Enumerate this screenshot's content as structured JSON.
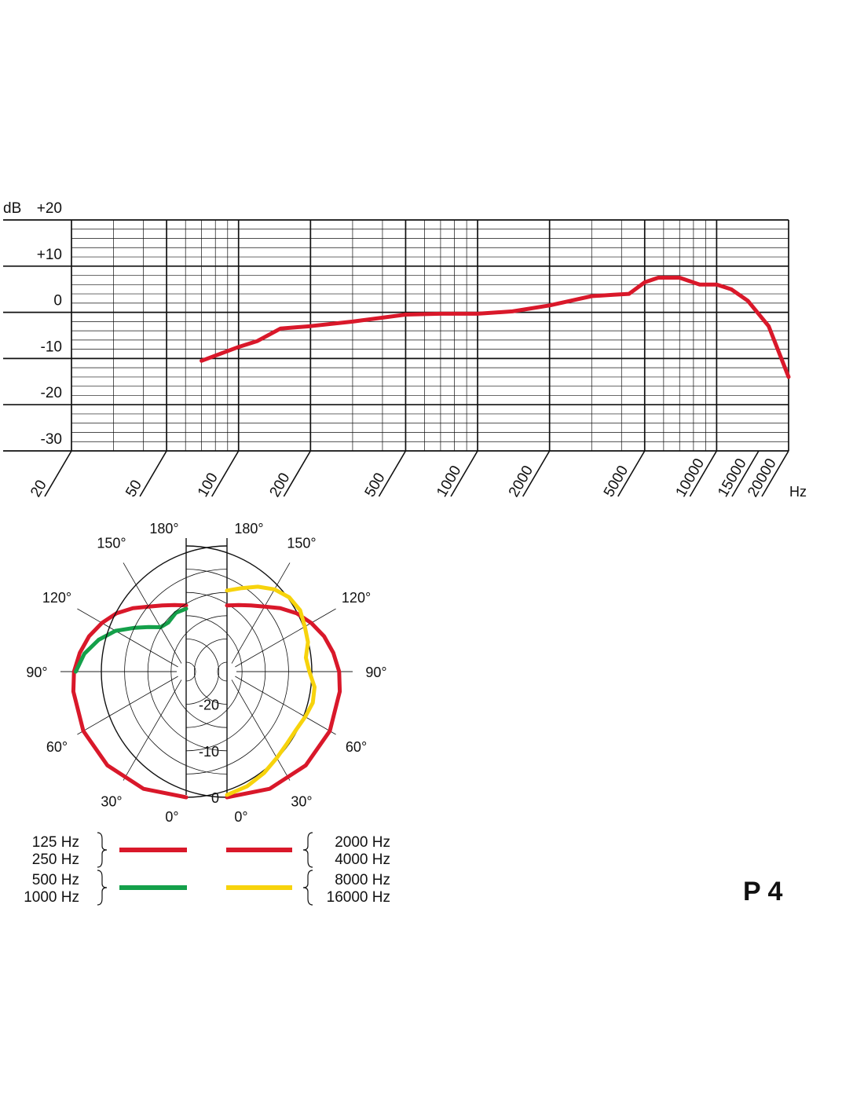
{
  "model_label": "P 4",
  "colors": {
    "red": "#d9182a",
    "green": "#14a04a",
    "yellow": "#f7d30c",
    "grid": "#111111"
  },
  "chart_data": [
    {
      "type": "line",
      "subtype": "frequency-response",
      "title": "",
      "x_scale": "log",
      "xlabel": "Hz",
      "ylabel": "dB",
      "xlim": [
        20,
        20000
      ],
      "ylim": [
        -30,
        20
      ],
      "x_ticks": [
        "20",
        "50",
        "100",
        "200",
        "500",
        "1000",
        "2000",
        "5000",
        "10000",
        "15000",
        "20000"
      ],
      "x_tick_values": [
        20,
        50,
        100,
        200,
        500,
        1000,
        2000,
        5000,
        10000,
        15000,
        20000
      ],
      "y_ticks": [
        "+20",
        "+10",
        "0",
        "-10",
        "-20",
        "-30"
      ],
      "y_tick_values": [
        20,
        10,
        0,
        -10,
        -20,
        -30
      ],
      "grid": true,
      "series": [
        {
          "color": "#d9182a",
          "x": [
            70,
            100,
            120,
            150,
            200,
            300,
            500,
            700,
            1000,
            1400,
            2000,
            3000,
            3700,
            4300,
            5000,
            5700,
            7000,
            8500,
            10000,
            11500,
            13500,
            16500,
            20000
          ],
          "y": [
            -10.5,
            -7.5,
            -6.2,
            -3.5,
            -3,
            -2,
            -0.5,
            -0.3,
            -0.3,
            0.2,
            1.5,
            3.5,
            3.8,
            4,
            6.5,
            7.5,
            7.5,
            6,
            6,
            5,
            2.5,
            -3,
            -14
          ]
        }
      ]
    },
    {
      "type": "polar",
      "subtype": "polar-pattern",
      "title": "",
      "angle_labels": [
        "0°",
        "30°",
        "60°",
        "90°",
        "120°",
        "150°",
        "180°"
      ],
      "angle_values": [
        0,
        30,
        60,
        90,
        120,
        150,
        180
      ],
      "radial_labels": [
        "0",
        "-10",
        "-20"
      ],
      "radial_values": [
        0,
        -10,
        -20
      ],
      "rlim": [
        -25,
        0
      ],
      "grid": true,
      "series": [
        {
          "side": "left",
          "color": "#d9182a",
          "legend": [
            "125 Hz",
            "250 Hz"
          ],
          "angles": [
            0,
            20,
            40,
            60,
            80,
            90,
            100,
            110,
            120,
            130,
            140,
            150,
            160,
            170,
            180
          ],
          "db": [
            0,
            -0.2,
            -0.7,
            -1.5,
            -2.4,
            -2.9,
            -3.8,
            -4.8,
            -6.1,
            -7.5,
            -9.2,
            -10.9,
            -11.9,
            -12.5,
            -12.8
          ]
        },
        {
          "side": "left",
          "color": "#14a04a",
          "legend": [
            "500 Hz",
            "1000 Hz"
          ],
          "angles": [
            90,
            100,
            110,
            120,
            130,
            140,
            150,
            160,
            170,
            180
          ],
          "db": [
            -3.3,
            -4.8,
            -7,
            -9.5,
            -12.4,
            -14.5,
            -16,
            -15.8,
            -14.2,
            -13.5
          ]
        },
        {
          "side": "right",
          "color": "#d9182a",
          "legend": [
            "2000 Hz",
            "4000 Hz"
          ],
          "angles": [
            0,
            20,
            40,
            60,
            80,
            90,
            100,
            110,
            120,
            130,
            140,
            150,
            160,
            170,
            180
          ],
          "db": [
            0,
            -0.2,
            -0.7,
            -1.5,
            -2.4,
            -2.9,
            -3.8,
            -4.8,
            -6.1,
            -7.5,
            -9.2,
            -10.9,
            -11.9,
            -12.5,
            -12.8
          ]
        },
        {
          "side": "right",
          "color": "#f7d30c",
          "legend": [
            "8000 Hz",
            "16000 Hz"
          ],
          "angles": [
            0,
            10,
            20,
            30,
            40,
            50,
            60,
            70,
            80,
            90,
            100,
            110,
            120,
            130,
            140,
            150,
            160,
            170,
            180
          ],
          "db": [
            -0.5,
            -2,
            -3.8,
            -5.6,
            -6.9,
            -7.6,
            -7.6,
            -7.4,
            -7.9,
            -9.3,
            -9.8,
            -8.5,
            -7.7,
            -6.5,
            -6.2,
            -6.6,
            -7.6,
            -8.8,
            -9.6
          ]
        }
      ]
    }
  ]
}
